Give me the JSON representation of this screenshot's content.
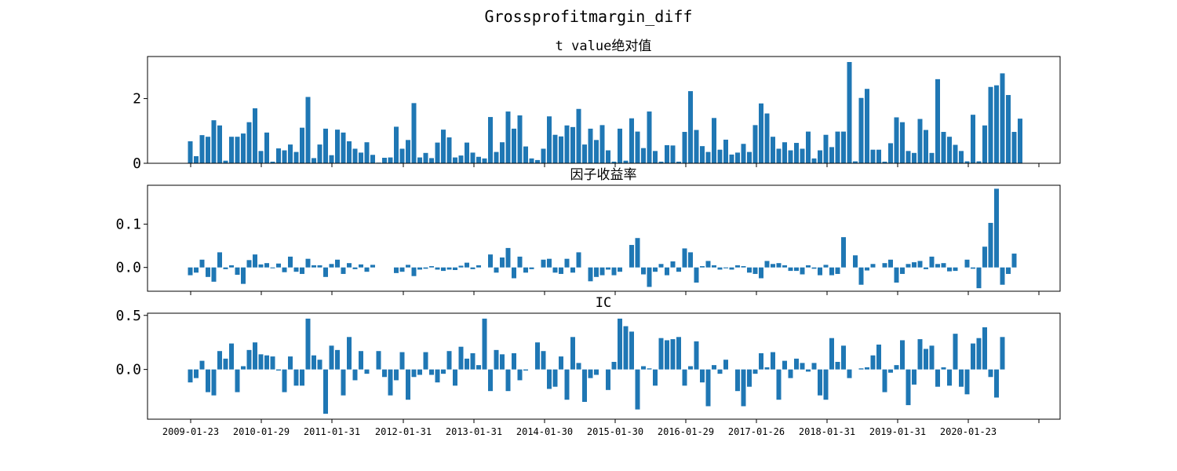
{
  "figure": {
    "title": "Grossprofitmargin_diff"
  },
  "colors": {
    "bar": "#1f77b4",
    "axis": "#000000",
    "background": "#ffffff"
  },
  "chart_data": [
    {
      "type": "bar",
      "title": "t value绝对值",
      "ylim": [
        0,
        3.3
      ],
      "yticks": [
        0,
        2
      ],
      "ytick_labels": [
        "0",
        "2"
      ],
      "grid": false,
      "start_date": "2009-01-23",
      "values": [
        0.68,
        0.22,
        0.87,
        0.82,
        1.33,
        1.17,
        0.08,
        0.82,
        0.82,
        0.92,
        1.27,
        1.7,
        0.38,
        0.95,
        0.05,
        0.46,
        0.4,
        0.58,
        0.35,
        1.1,
        2.05,
        0.16,
        0.58,
        1.07,
        0.25,
        1.04,
        0.95,
        0.68,
        0.45,
        0.33,
        0.65,
        0.26,
        0.02,
        0.17,
        0.18,
        1.13,
        0.45,
        0.72,
        1.86,
        0.18,
        0.32,
        0.16,
        0.64,
        1.04,
        0.8,
        0.18,
        0.24,
        0.64,
        0.33,
        0.2,
        0.15,
        1.43,
        0.35,
        0.65,
        1.6,
        1.07,
        1.48,
        0.52,
        0.15,
        0.1,
        0.45,
        1.45,
        0.88,
        0.83,
        1.17,
        1.12,
        1.68,
        0.58,
        1.07,
        0.72,
        1.18,
        0.4,
        0.05,
        1.07,
        0.08,
        1.39,
        0.98,
        0.47,
        1.6,
        0.38,
        0.05,
        0.56,
        0.55,
        0.05,
        0.97,
        2.23,
        1.03,
        0.53,
        0.35,
        1.4,
        0.42,
        0.73,
        0.27,
        0.33,
        0.6,
        0.35,
        1.18,
        1.85,
        1.54,
        0.82,
        0.45,
        0.65,
        0.4,
        0.63,
        0.45,
        0.98,
        0.15,
        0.4,
        0.88,
        0.5,
        0.98,
        0.98,
        3.13,
        0.06,
        2.02,
        2.3,
        0.42,
        0.42,
        0.05,
        0.62,
        1.42,
        1.27,
        0.38,
        0.32,
        1.37,
        1.03,
        0.32,
        2.6,
        0.97,
        0.82,
        0.57,
        0.38,
        0.06,
        1.5,
        0.06,
        1.17,
        2.36,
        2.41,
        2.78,
        2.11,
        0.97,
        1.38
      ]
    },
    {
      "type": "bar",
      "title": "因子收益率",
      "ylim": [
        -0.055,
        0.19
      ],
      "yticks": [
        0.0,
        0.1
      ],
      "ytick_labels": [
        "0.0",
        "0.1"
      ],
      "grid": false,
      "start_date": "2009-01-23",
      "values": [
        -0.018,
        -0.012,
        0.018,
        -0.022,
        -0.033,
        0.035,
        -0.004,
        0.005,
        -0.017,
        -0.038,
        0.017,
        0.03,
        0.007,
        0.01,
        -0.002,
        0.009,
        -0.011,
        0.025,
        -0.01,
        -0.015,
        0.02,
        0.005,
        0.005,
        -0.022,
        0.008,
        0.018,
        -0.015,
        0.01,
        -0.004,
        0.007,
        -0.01,
        0.006,
        0.0,
        0.0,
        0.0,
        -0.013,
        -0.01,
        0.006,
        -0.02,
        -0.005,
        -0.003,
        0.003,
        -0.005,
        -0.008,
        -0.005,
        -0.006,
        0.004,
        0.011,
        -0.004,
        0.005,
        0.0,
        0.03,
        -0.012,
        0.023,
        0.045,
        -0.025,
        0.025,
        -0.012,
        -0.004,
        0.0,
        0.018,
        0.02,
        -0.012,
        -0.015,
        0.02,
        -0.012,
        0.035,
        0.0,
        -0.032,
        -0.022,
        -0.018,
        -0.005,
        -0.018,
        -0.01,
        0.0,
        0.052,
        0.068,
        -0.016,
        -0.045,
        -0.01,
        0.008,
        -0.018,
        0.014,
        -0.01,
        0.044,
        0.035,
        -0.035,
        0.003,
        0.015,
        0.005,
        -0.005,
        -0.002,
        -0.005,
        0.005,
        0.003,
        -0.012,
        -0.015,
        -0.025,
        0.015,
        0.008,
        0.01,
        0.005,
        -0.008,
        -0.008,
        -0.016,
        0.005,
        -0.003,
        -0.018,
        0.006,
        -0.018,
        -0.015,
        0.07,
        0.0,
        0.028,
        -0.04,
        -0.007,
        0.008,
        0.0,
        0.01,
        0.018,
        -0.035,
        -0.015,
        0.008,
        0.012,
        0.015,
        -0.004,
        0.025,
        0.008,
        0.01,
        -0.009,
        -0.008,
        0.0,
        0.018,
        -0.003,
        -0.048,
        0.048,
        0.103,
        0.182,
        -0.04,
        -0.015,
        0.032
      ]
    },
    {
      "type": "bar",
      "title": "IC",
      "ylim": [
        -0.46,
        0.52
      ],
      "yticks": [
        0.0,
        0.5
      ],
      "ytick_labels": [
        "0.0",
        "0.5"
      ],
      "grid": false,
      "start_date": "2009-01-23",
      "xtick_labels": [
        "2009-01-23",
        "2010-01-29",
        "2011-01-31",
        "2012-01-31",
        "2013-01-31",
        "2014-01-30",
        "2015-01-30",
        "2016-01-29",
        "2017-01-26",
        "2018-01-31",
        "2019-01-31",
        "2020-01-23"
      ],
      "values": [
        -0.12,
        -0.08,
        0.08,
        -0.21,
        -0.24,
        0.17,
        0.1,
        0.24,
        -0.21,
        0.03,
        0.18,
        0.25,
        0.14,
        0.13,
        0.12,
        -0.01,
        -0.21,
        0.12,
        -0.15,
        -0.15,
        0.47,
        0.13,
        0.09,
        -0.41,
        0.22,
        0.18,
        -0.24,
        0.3,
        -0.1,
        0.17,
        -0.04,
        0.0,
        0.17,
        -0.07,
        -0.24,
        -0.1,
        0.16,
        -0.28,
        -0.07,
        -0.05,
        0.16,
        -0.05,
        -0.12,
        -0.04,
        0.17,
        -0.15,
        0.21,
        0.1,
        0.15,
        0.04,
        0.47,
        -0.2,
        0.18,
        0.14,
        -0.2,
        0.15,
        -0.1,
        -0.01,
        0.0,
        0.25,
        0.17,
        -0.18,
        -0.16,
        0.12,
        -0.28,
        0.3,
        0.06,
        -0.3,
        -0.08,
        -0.05,
        0.0,
        -0.19,
        0.07,
        0.47,
        0.4,
        0.35,
        -0.37,
        0.03,
        0.01,
        -0.15,
        0.29,
        0.27,
        0.28,
        0.3,
        -0.15,
        0.03,
        0.26,
        -0.12,
        -0.34,
        0.04,
        -0.04,
        0.09,
        0.0,
        -0.2,
        -0.34,
        -0.16,
        -0.04,
        0.15,
        0.02,
        0.16,
        -0.28,
        0.08,
        -0.08,
        0.1,
        0.06,
        -0.02,
        0.06,
        -0.24,
        -0.28,
        0.29,
        0.07,
        0.22,
        -0.08,
        0.0,
        0.01,
        0.02,
        0.13,
        0.23,
        -0.21,
        -0.03,
        0.04,
        0.27,
        -0.33,
        -0.14,
        0.28,
        0.19,
        0.22,
        -0.16,
        0.02,
        -0.15,
        0.33,
        -0.16,
        -0.23,
        0.24,
        0.29,
        0.39,
        -0.07,
        -0.26,
        0.3
      ]
    }
  ]
}
